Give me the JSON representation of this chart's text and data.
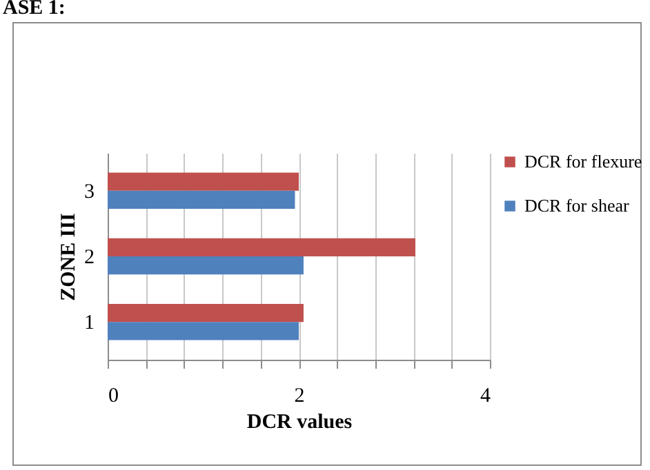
{
  "chart_data": {
    "type": "bar",
    "orientation": "horizontal",
    "title": "ASE 1:",
    "xlabel": "DCR values",
    "ylabel": "ZONE III",
    "categories": [
      "3",
      "2",
      "1"
    ],
    "series": [
      {
        "name": "DCR for flexure",
        "color": "#c0504d",
        "values": [
          2.0,
          3.22,
          2.05
        ]
      },
      {
        "name": "DCR for shear",
        "color": "#4f81bd",
        "values": [
          1.96,
          2.05,
          2.0
        ]
      }
    ],
    "xlim": [
      0,
      4
    ],
    "xticks": [
      0,
      {
        "value": 0.4,
        "label": null
      },
      {
        "value": 0.8,
        "label": null
      },
      {
        "value": 1.2,
        "label": null
      },
      {
        "value": 1.6,
        "label": null
      },
      2,
      {
        "value": 2.4,
        "label": null
      },
      {
        "value": 2.8,
        "label": null
      },
      {
        "value": 3.2,
        "label": null
      },
      {
        "value": 3.6,
        "label": null
      },
      4
    ],
    "grid": "x",
    "legend": "right"
  }
}
